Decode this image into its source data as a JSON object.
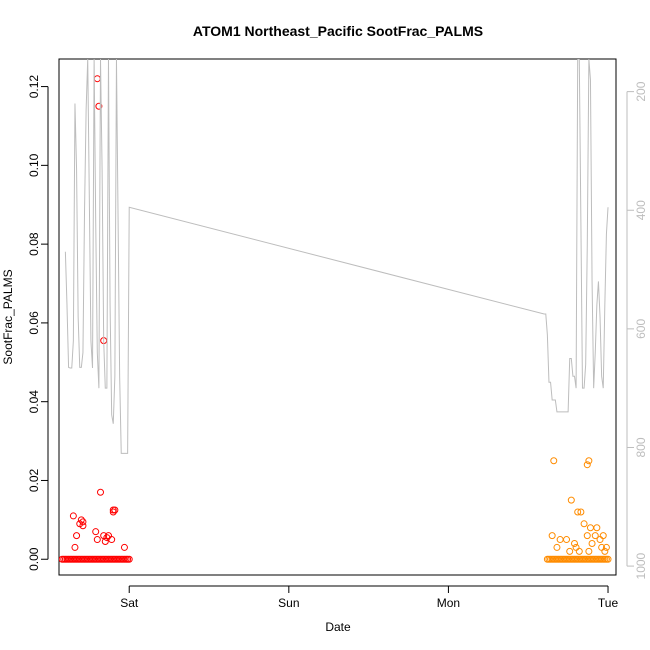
{
  "chart_data": {
    "type": "scatter",
    "title": "ATOM1 Northeast_Pacific SootFrac_PALMS",
    "xlabel": "Date",
    "ylabel": "SootFrac_PALMS",
    "x_axis": {
      "unit": "days",
      "range": [
        -0.44,
        3.05
      ],
      "ticks": [
        {
          "value": 0,
          "label": "Sat"
        },
        {
          "value": 1,
          "label": "Sun"
        },
        {
          "value": 2,
          "label": "Mon"
        },
        {
          "value": 3,
          "label": "Tue"
        }
      ]
    },
    "y_axis": {
      "range": [
        -0.004,
        0.127
      ],
      "ticks": [
        {
          "value": 0.0,
          "label": "0.00"
        },
        {
          "value": 0.02,
          "label": "0.02"
        },
        {
          "value": 0.04,
          "label": "0.04"
        },
        {
          "value": 0.06,
          "label": "0.06"
        },
        {
          "value": 0.08,
          "label": "0.08"
        },
        {
          "value": 0.1,
          "label": "0.10"
        },
        {
          "value": 0.12,
          "label": "0.12"
        }
      ]
    },
    "y2_axis": {
      "label": "",
      "inverted": true,
      "range": [
        1015,
        145
      ],
      "ticks": [
        {
          "value": 200,
          "label": "200"
        },
        {
          "value": 400,
          "label": "400"
        },
        {
          "value": 600,
          "label": "600"
        },
        {
          "value": 800,
          "label": "800"
        },
        {
          "value": 1000,
          "label": "1000"
        }
      ]
    },
    "grid": false,
    "legend": "none",
    "series": [
      {
        "color": "#ff0000",
        "marker": "open-circle",
        "x": [
          -0.42,
          -0.41,
          -0.4,
          -0.39,
          -0.38,
          -0.37,
          -0.36,
          -0.35,
          -0.34,
          -0.33,
          -0.32,
          -0.31,
          -0.3,
          -0.29,
          -0.28,
          -0.27,
          -0.26,
          -0.25,
          -0.24,
          -0.23,
          -0.22,
          -0.21,
          -0.2,
          -0.19,
          -0.18,
          -0.17,
          -0.16,
          -0.15,
          -0.14,
          -0.13,
          -0.12,
          -0.11,
          -0.1,
          -0.09,
          -0.08,
          -0.07,
          -0.06,
          -0.05,
          -0.04,
          -0.03,
          -0.02,
          -0.01,
          0.0,
          -0.35,
          -0.34,
          -0.33,
          -0.31,
          -0.3,
          -0.29,
          -0.29,
          -0.21,
          -0.2,
          -0.18,
          -0.16,
          -0.15,
          -0.14,
          -0.13,
          -0.11,
          -0.1,
          -0.09,
          -0.03,
          -0.2,
          -0.19,
          -0.16,
          -0.1
        ],
        "y": [
          0,
          0,
          0,
          0,
          0,
          0,
          0,
          0,
          0,
          0,
          0,
          0,
          0,
          0,
          0,
          0,
          0,
          0,
          0,
          0,
          0,
          0,
          0,
          0,
          0,
          0,
          0,
          0,
          0,
          0,
          0,
          0,
          0,
          0,
          0,
          0,
          0,
          0,
          0,
          0,
          0,
          0,
          0,
          0.011,
          0.003,
          0.006,
          0.009,
          0.01,
          0.0095,
          0.0085,
          0.007,
          0.005,
          0.017,
          0.006,
          0.0045,
          0.0055,
          0.006,
          0.005,
          0.012,
          0.0125,
          0.003,
          0.122,
          0.115,
          0.0555,
          0.0125
        ]
      },
      {
        "color": "#ff8c00",
        "marker": "open-circle",
        "x": [
          2.62,
          2.63,
          2.64,
          2.65,
          2.66,
          2.67,
          2.68,
          2.69,
          2.7,
          2.71,
          2.72,
          2.73,
          2.74,
          2.75,
          2.76,
          2.77,
          2.78,
          2.79,
          2.8,
          2.81,
          2.82,
          2.83,
          2.84,
          2.85,
          2.86,
          2.87,
          2.88,
          2.89,
          2.9,
          2.91,
          2.92,
          2.93,
          2.94,
          2.95,
          2.96,
          2.97,
          2.98,
          2.99,
          3.0,
          2.65,
          2.66,
          2.68,
          2.7,
          2.74,
          2.76,
          2.77,
          2.79,
          2.8,
          2.81,
          2.82,
          2.83,
          2.85,
          2.87,
          2.88,
          2.89,
          2.9,
          2.92,
          2.93,
          2.95,
          2.96,
          2.97,
          2.98,
          2.99,
          2.87,
          2.88
        ],
        "y": [
          0,
          0,
          0,
          0,
          0,
          0,
          0,
          0,
          0,
          0,
          0,
          0,
          0,
          0,
          0,
          0,
          0,
          0,
          0,
          0,
          0,
          0,
          0,
          0,
          0,
          0,
          0,
          0,
          0,
          0,
          0,
          0,
          0,
          0,
          0,
          0,
          0,
          0,
          0,
          0.006,
          0.025,
          0.003,
          0.005,
          0.005,
          0.002,
          0.015,
          0.004,
          0.003,
          0.012,
          0.002,
          0.012,
          0.009,
          0.006,
          0.002,
          0.008,
          0.004,
          0.006,
          0.008,
          0.005,
          0.003,
          0.006,
          0.002,
          0.003,
          0.024,
          0.025
        ]
      },
      {
        "color": "#bdbdbd",
        "style": "line",
        "axis": "right",
        "x": [
          -0.4,
          -0.39,
          -0.38,
          -0.37,
          -0.36,
          -0.35,
          -0.34,
          -0.33,
          -0.32,
          -0.31,
          -0.3,
          -0.29,
          -0.28,
          -0.27,
          -0.26,
          -0.25,
          -0.24,
          -0.23,
          -0.22,
          -0.21,
          -0.2,
          -0.19,
          -0.18,
          -0.17,
          -0.16,
          -0.15,
          -0.14,
          -0.13,
          -0.12,
          -0.11,
          -0.1,
          -0.09,
          -0.08,
          -0.07,
          -0.06,
          -0.05,
          -0.04,
          -0.03,
          -0.02,
          -0.01,
          0.0,
          2.6,
          2.61,
          2.62,
          2.63,
          2.64,
          2.65,
          2.66,
          2.67,
          2.68,
          2.69,
          2.7,
          2.71,
          2.72,
          2.73,
          2.74,
          2.75,
          2.76,
          2.77,
          2.78,
          2.79,
          2.8,
          2.81,
          2.82,
          2.83,
          2.84,
          2.85,
          2.86,
          2.87,
          2.88,
          2.89,
          2.9,
          2.91,
          2.92,
          2.93,
          2.94,
          2.95,
          2.96,
          2.97,
          2.98,
          2.99,
          3.0
        ],
        "y": [
          470,
          560,
          665,
          666,
          666,
          620,
          220,
          330,
          580,
          665,
          665,
          640,
          400,
          230,
          145,
          380,
          620,
          666,
          145,
          420,
          640,
          700,
          145,
          330,
          620,
          700,
          700,
          145,
          560,
          745,
          760,
          680,
          145,
          410,
          680,
          810,
          810,
          810,
          810,
          810,
          395,
          575,
          575,
          610,
          690,
          690,
          720,
          720,
          720,
          740,
          740,
          740,
          740,
          740,
          740,
          740,
          740,
          650,
          650,
          680,
          680,
          700,
          145,
          145,
          420,
          700,
          700,
          660,
          460,
          145,
          180,
          520,
          700,
          640,
          560,
          520,
          580,
          680,
          700,
          560,
          440,
          395
        ]
      }
    ]
  }
}
